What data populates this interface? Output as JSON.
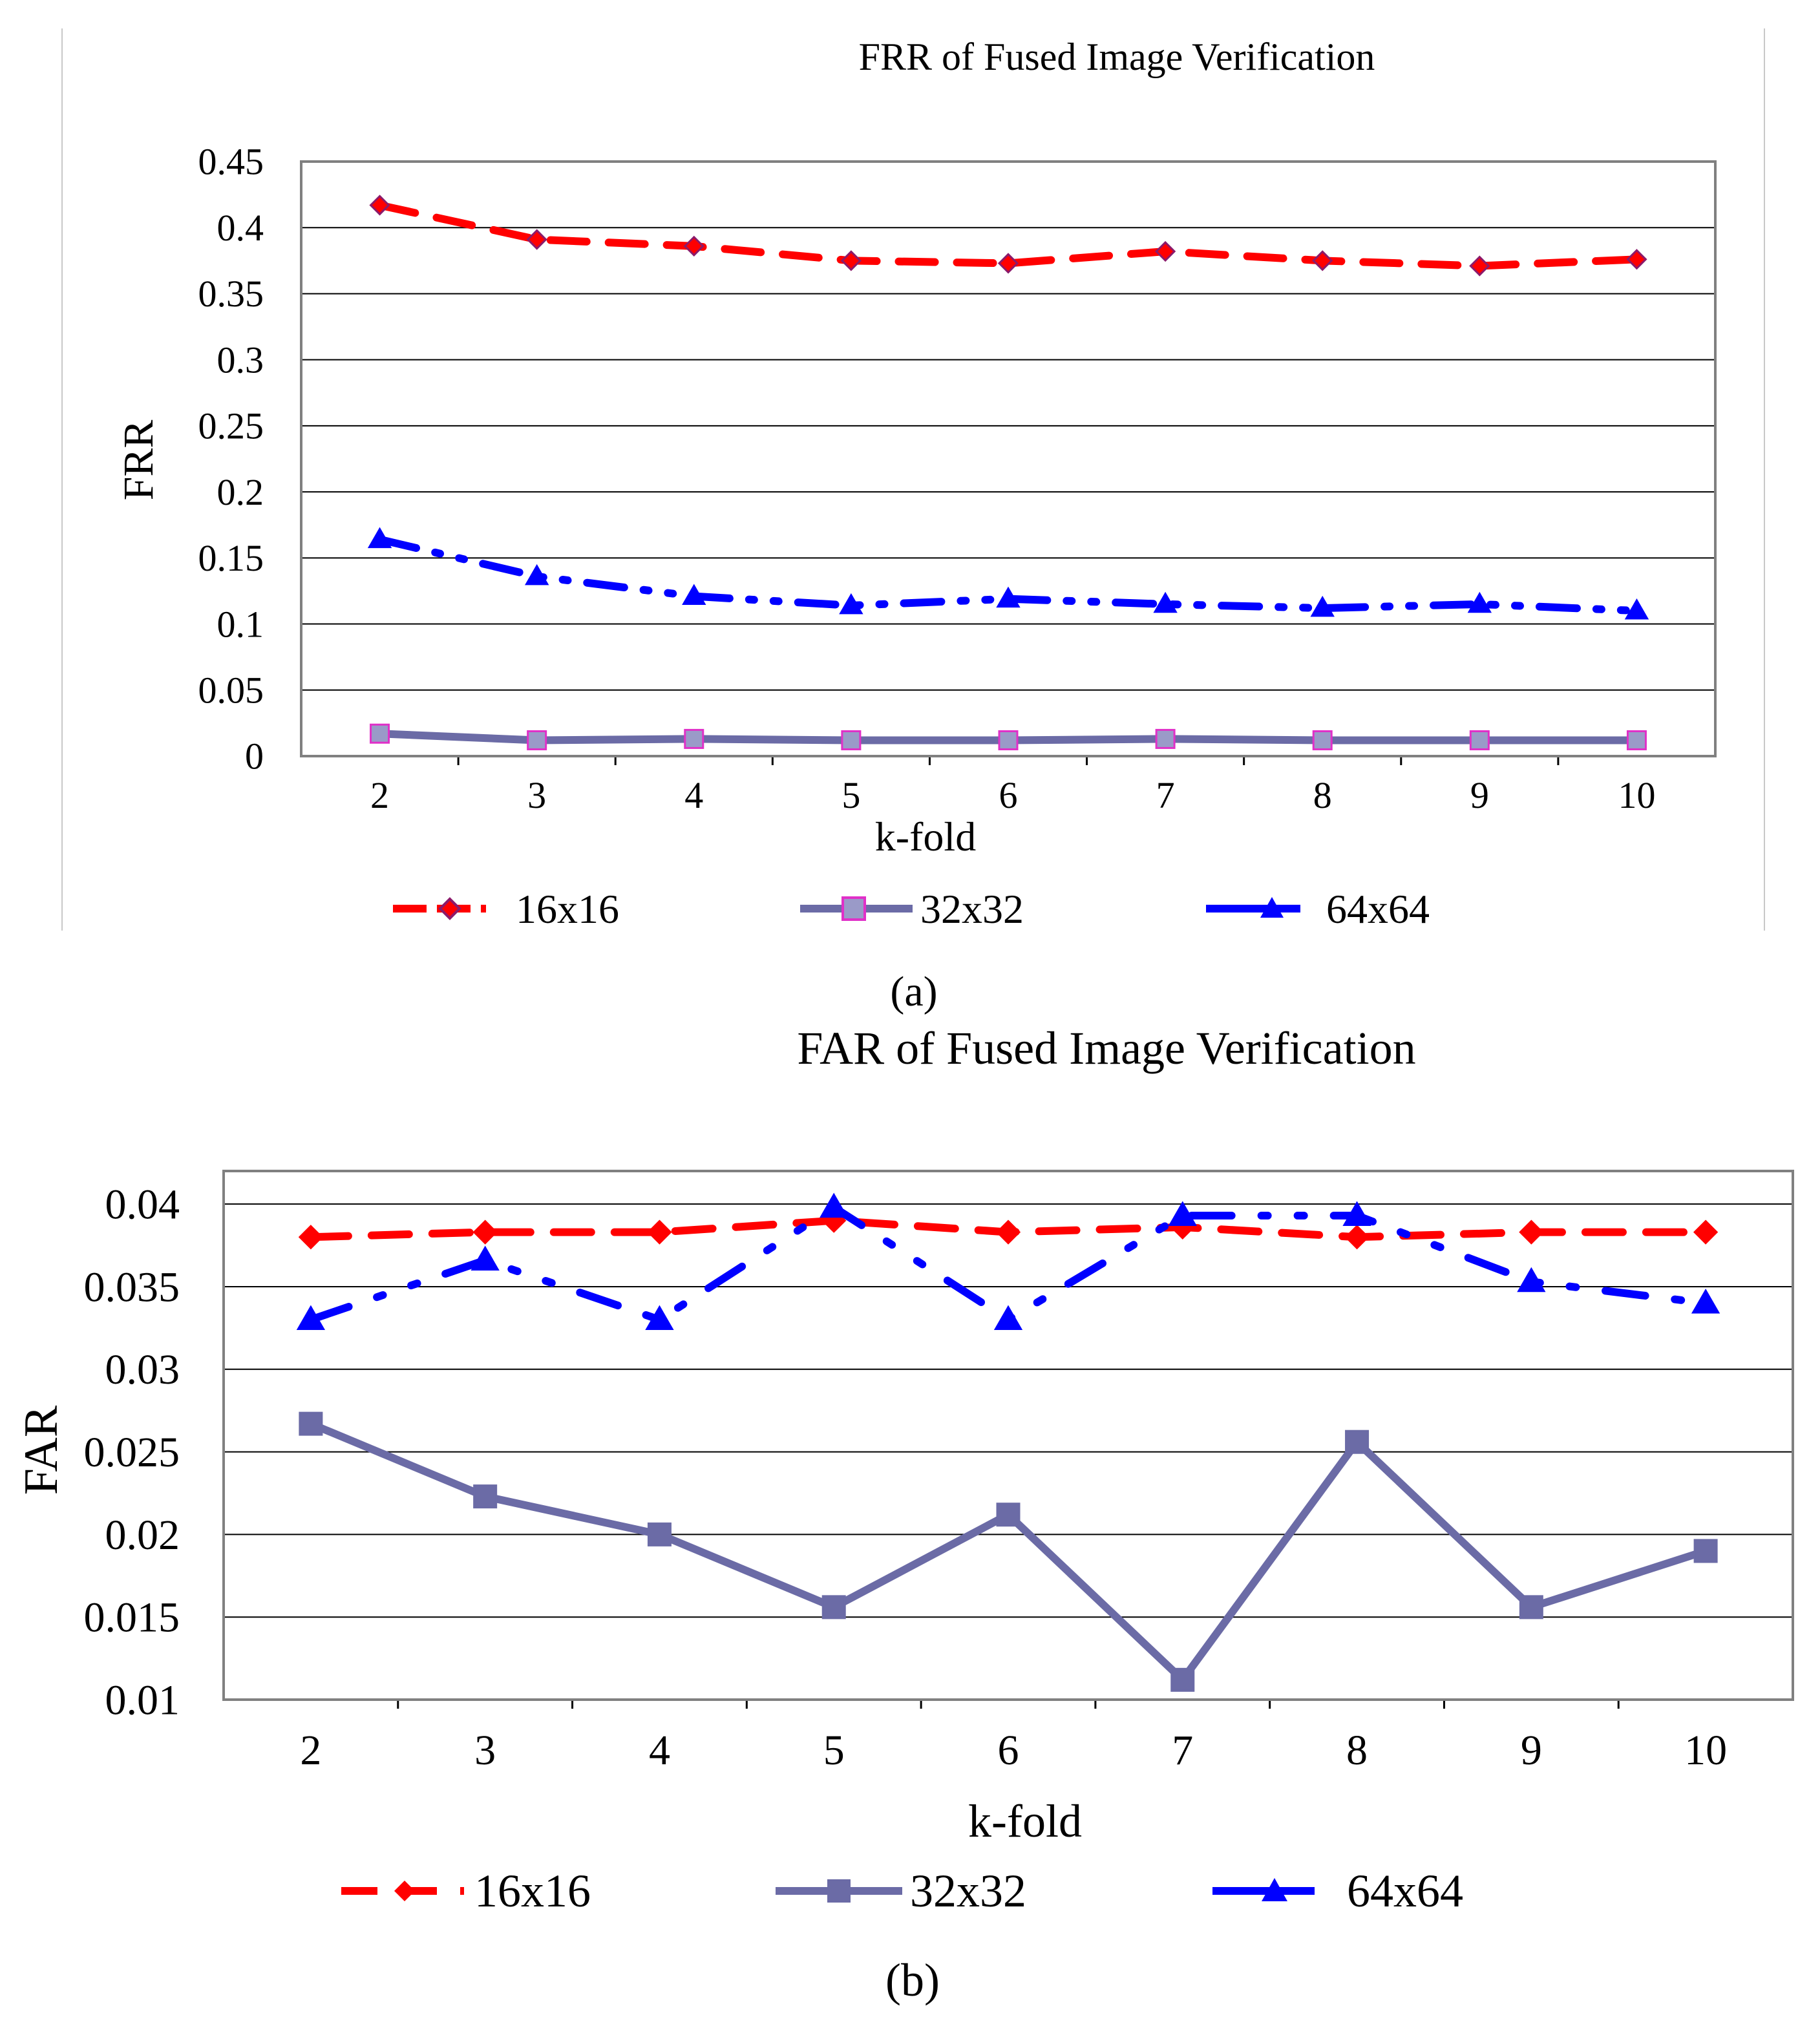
{
  "chart_data": [
    {
      "panel_label": "(a)",
      "type": "line",
      "title": "FRR of Fused Image Verification",
      "xlabel": "k-fold",
      "ylabel": "FRR",
      "x": [
        2,
        3,
        4,
        5,
        6,
        7,
        8,
        9,
        10
      ],
      "x_tick_labels": [
        "2",
        "3",
        "4",
        "5",
        "6",
        "7",
        "8",
        "9",
        "10"
      ],
      "ylim": [
        0,
        0.45
      ],
      "y_ticks": [
        0,
        0.05,
        0.1,
        0.15,
        0.2,
        0.25,
        0.3,
        0.35,
        0.4,
        0.45
      ],
      "y_tick_labels": [
        "0",
        "0.05",
        "0.1",
        "0.15",
        "0.2",
        "0.25",
        "0.3",
        "0.35",
        "0.4",
        "0.45"
      ],
      "grid": true,
      "legend_position": "bottom",
      "series": [
        {
          "name": "16x16",
          "color": "#ff0000",
          "marker": "diamond",
          "marker_fill": "#ff0000",
          "marker_edge": "#8b1a6b",
          "dash": "dash",
          "values": [
            0.417,
            0.391,
            0.386,
            0.375,
            0.373,
            0.382,
            0.375,
            0.371,
            0.376
          ]
        },
        {
          "name": "32x32",
          "color": "#6b6ba6",
          "marker": "square",
          "marker_fill": "#9a9ac8",
          "marker_edge": "#e030c8",
          "dash": "solid",
          "values": [
            0.017,
            0.012,
            0.013,
            0.012,
            0.012,
            0.013,
            0.012,
            0.012,
            0.012
          ]
        },
        {
          "name": "64x64",
          "color": "#0000ff",
          "marker": "triangle",
          "marker_fill": "#0000ff",
          "marker_edge": "#0000ff",
          "dash": "dashdot",
          "values": [
            0.164,
            0.136,
            0.121,
            0.114,
            0.119,
            0.115,
            0.112,
            0.115,
            0.11
          ]
        }
      ]
    },
    {
      "panel_label": "(b)",
      "type": "line",
      "title": "FAR of Fused Image Verification",
      "xlabel": "k-fold",
      "ylabel": "FAR",
      "x": [
        2,
        3,
        4,
        5,
        6,
        7,
        8,
        9,
        10
      ],
      "x_tick_labels": [
        "2",
        "3",
        "4",
        "5",
        "6",
        "7",
        "8",
        "9",
        "10"
      ],
      "ylim": [
        0.01,
        0.042
      ],
      "y_ticks": [
        0.01,
        0.015,
        0.02,
        0.025,
        0.03,
        0.035,
        0.04
      ],
      "y_tick_labels": [
        "0.01",
        "0.015",
        "0.02",
        "0.025",
        "0.03",
        "0.035",
        "0.04"
      ],
      "grid": true,
      "legend_position": "bottom",
      "series": [
        {
          "name": "16x16",
          "color": "#ff0000",
          "marker": "diamond",
          "marker_fill": "#ff0000",
          "marker_edge": "#ff0000",
          "dash": "dash",
          "values": [
            0.038,
            0.0383,
            0.0383,
            0.039,
            0.0383,
            0.0386,
            0.038,
            0.0383,
            0.0383
          ]
        },
        {
          "name": "32x32",
          "color": "#6b6ba6",
          "marker": "square",
          "marker_fill": "#6b6ba6",
          "marker_edge": "#6b6ba6",
          "dash": "solid",
          "values": [
            0.0267,
            0.0223,
            0.02,
            0.0156,
            0.0212,
            0.0112,
            0.0256,
            0.0156,
            0.019
          ]
        },
        {
          "name": "64x64",
          "color": "#0000ff",
          "marker": "triangle",
          "marker_fill": "#0000ff",
          "marker_edge": "#0000ff",
          "dash": "dashdot",
          "values": [
            0.033,
            0.0366,
            0.033,
            0.0398,
            0.033,
            0.0393,
            0.0393,
            0.0353,
            0.034
          ]
        }
      ]
    }
  ]
}
